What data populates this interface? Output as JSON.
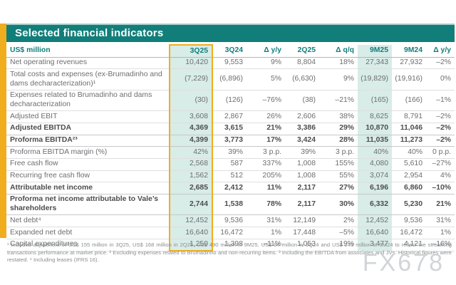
{
  "title": "Selected financial indicators",
  "watermark": "FX678",
  "colors": {
    "header_teal": "#127E79",
    "highlight_teal_light": "#D8ECE8",
    "accent_yellow": "#F0AD1E",
    "text_gray": "#6D6E71",
    "text_bold_gray": "#4D4D4F"
  },
  "table": {
    "unit_label": "US$ million",
    "columns": [
      "3Q25",
      "3Q24",
      "Δ y/y",
      "2Q25",
      "Δ q/q",
      "9M25",
      "9M24",
      "Δ y/y"
    ],
    "highlighted_column_boxed": "3Q25",
    "highlighted_column_shaded": "9M25",
    "rows": [
      {
        "label": "Net operating revenues",
        "bold": false,
        "values": [
          "10,420",
          "9,553",
          "9%",
          "8,804",
          "18%",
          "27,343",
          "27,932",
          "–2%"
        ]
      },
      {
        "label": "Total costs and expenses (ex-Brumadinho and dams decharacterization)¹",
        "bold": false,
        "values": [
          "(7,229)",
          "(6,896)",
          "5%",
          "(6,630)",
          "9%",
          "(19,829)",
          "(19,916)",
          "0%"
        ]
      },
      {
        "label": "Expenses related to Brumadinho and dams decharacterization",
        "bold": false,
        "values": [
          "(30)",
          "(126)",
          "–76%",
          "(38)",
          "–21%",
          "(165)",
          "(166)",
          "–1%"
        ]
      },
      {
        "label": "Adjusted EBIT",
        "bold": false,
        "values": [
          "3,608",
          "2,867",
          "26%",
          "2,606",
          "38%",
          "8,625",
          "8,791",
          "–2%"
        ]
      },
      {
        "label": "Adjusted EBITDA",
        "bold": true,
        "values": [
          "4,369",
          "3,615",
          "21%",
          "3,386",
          "29%",
          "10,870",
          "11,046",
          "–2%"
        ]
      },
      {
        "label": "Proforma EBITDA²³",
        "bold": true,
        "values": [
          "4,399",
          "3,773",
          "17%",
          "3,424",
          "28%",
          "11,035",
          "11,273",
          "–2%"
        ]
      },
      {
        "label": "Proforma EBITDA margin (%)",
        "bold": false,
        "values": [
          "42%",
          "39%",
          "3 p.p.",
          "39%",
          "3 p.p.",
          "40%",
          "40%",
          "0 p.p."
        ]
      },
      {
        "label": "Free cash flow",
        "bold": false,
        "values": [
          "2,568",
          "587",
          "337%",
          "1,008",
          "155%",
          "4,080",
          "5,610",
          "–27%"
        ]
      },
      {
        "label": "Recurring free cash flow",
        "bold": false,
        "values": [
          "1,562",
          "512",
          "205%",
          "1,008",
          "55%",
          "3,074",
          "2,954",
          "4%"
        ]
      },
      {
        "label": "Attributable net income",
        "bold": true,
        "values": [
          "2,685",
          "2,412",
          "11%",
          "2,117",
          "27%",
          "6,196",
          "6,860",
          "–10%"
        ]
      },
      {
        "label": "Proforma net income attributable to Vale’s shareholders",
        "bold": true,
        "values": [
          "2,744",
          "1,538",
          "78%",
          "2,117",
          "30%",
          "6,332",
          "5,230",
          "21%"
        ]
      },
      {
        "label": "Net debt⁴",
        "bold": false,
        "values": [
          "12,452",
          "9,536",
          "31%",
          "12,149",
          "2%",
          "12,452",
          "9,536",
          "31%"
        ]
      },
      {
        "label": "Expanded net debt",
        "bold": false,
        "values": [
          "16,640",
          "16,472",
          "1%",
          "17,448",
          "–5%",
          "16,640",
          "16,472",
          "1%"
        ]
      },
      {
        "label": "Capital expenditures",
        "bold": false,
        "values": [
          "1,250",
          "1,398",
          "–11%",
          "1,053",
          "19%",
          "3,477",
          "4,121",
          "–16%"
        ]
      }
    ]
  },
  "footnote": "¹ Includes adjustment of US$ 155 million in 3Q25, US$ 168 million in 2Q25, US$ 490 million in 9M25, US$ 94 million in 3Q24 and US$ 243 million in 9M24 to reflect the streaming transactions performance at market price. ² Excluding expenses related to Brumadinho and non-recurring items. ³ Including the EBITDA from associates and JVs. Historical figures were restated. ⁴ Including leases (IFRS 16)."
}
